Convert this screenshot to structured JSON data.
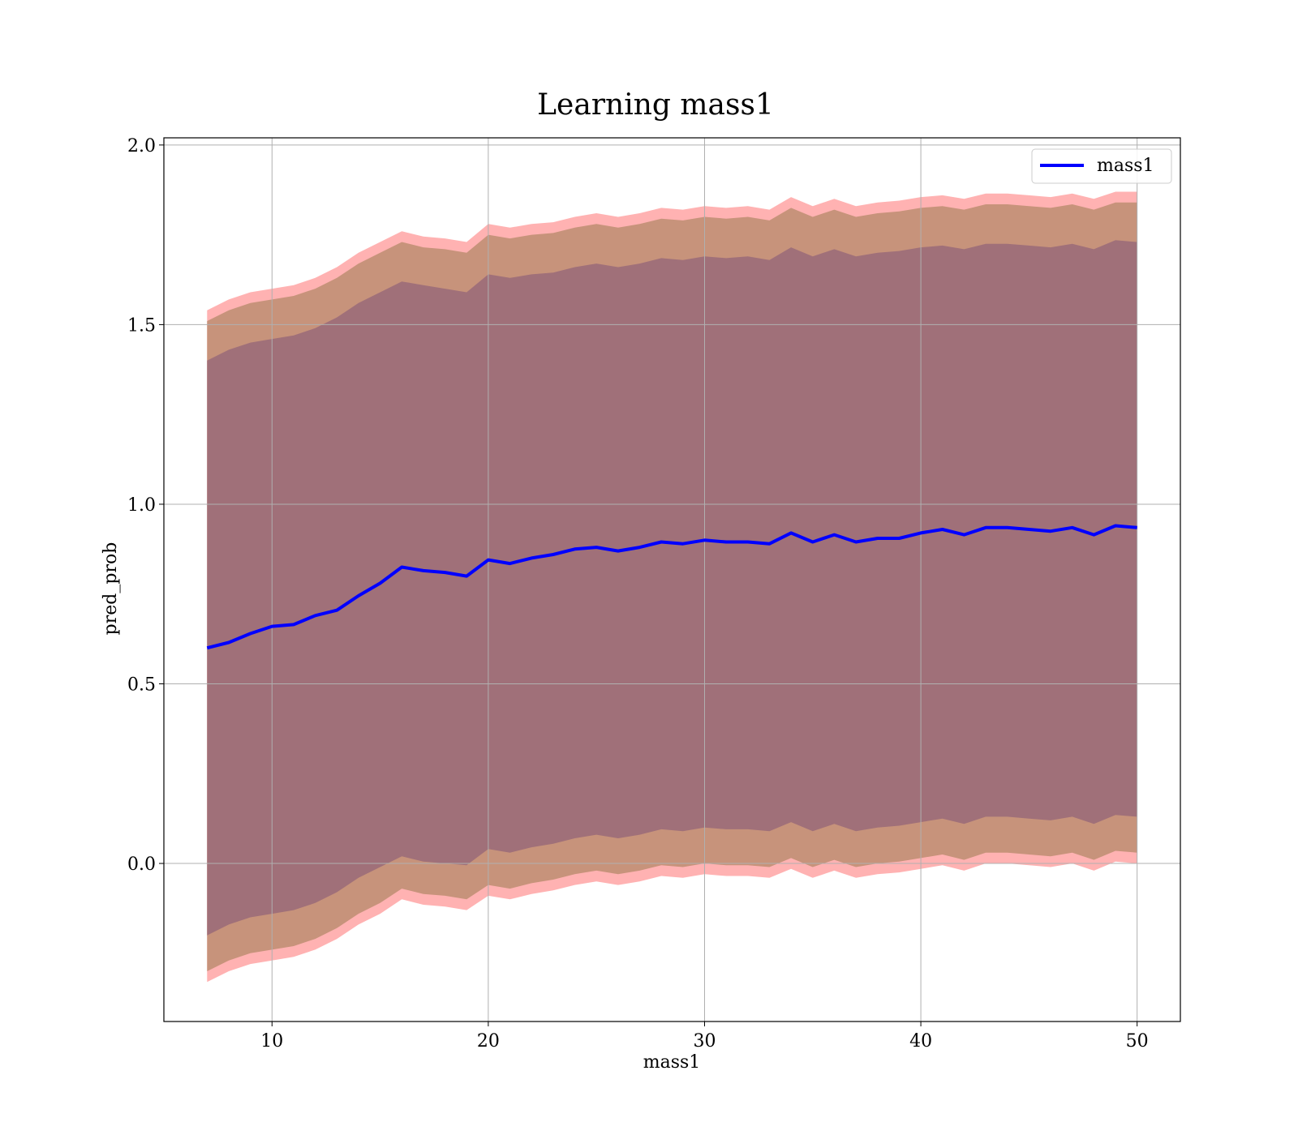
{
  "chart_data": {
    "type": "area",
    "title": "Learning mass1",
    "xlabel": "mass1",
    "ylabel": "pred_prob",
    "xlim": [
      5,
      52
    ],
    "ylim": [
      -0.44,
      2.02
    ],
    "x_ticks": [
      10,
      20,
      30,
      40,
      50
    ],
    "y_ticks": [
      0.0,
      0.5,
      1.0,
      1.5,
      2.0
    ],
    "x_tick_labels": [
      "10",
      "20",
      "30",
      "40",
      "50"
    ],
    "y_tick_labels": [
      "0.0",
      "0.5",
      "1.0",
      "1.5",
      "2.0"
    ],
    "grid": true,
    "legend": {
      "position": "top-right",
      "entries": [
        {
          "name": "mass1",
          "color": "#0000ff"
        }
      ]
    },
    "x": [
      7,
      8,
      9,
      10,
      11,
      12,
      13,
      14,
      15,
      16,
      17,
      18,
      19,
      20,
      21,
      22,
      23,
      24,
      25,
      26,
      27,
      28,
      29,
      30,
      31,
      32,
      33,
      34,
      35,
      36,
      37,
      38,
      39,
      40,
      41,
      42,
      43,
      44,
      45,
      46,
      47,
      48,
      49,
      50
    ],
    "series": [
      {
        "name": "mass1",
        "color": "#0000ff",
        "values": [
          0.6,
          0.615,
          0.64,
          0.66,
          0.665,
          0.69,
          0.705,
          0.745,
          0.78,
          0.825,
          0.815,
          0.81,
          0.8,
          0.845,
          0.835,
          0.85,
          0.86,
          0.875,
          0.88,
          0.87,
          0.88,
          0.895,
          0.89,
          0.9,
          0.895,
          0.895,
          0.89,
          0.92,
          0.895,
          0.915,
          0.895,
          0.905,
          0.905,
          0.92,
          0.93,
          0.915,
          0.935,
          0.935,
          0.93,
          0.925,
          0.935,
          0.915,
          0.94,
          0.935
        ]
      }
    ],
    "bands": [
      {
        "level": "outer",
        "color": "#ff7f7f",
        "upper": [
          1.54,
          1.57,
          1.59,
          1.6,
          1.61,
          1.63,
          1.66,
          1.7,
          1.73,
          1.76,
          1.745,
          1.74,
          1.73,
          1.78,
          1.77,
          1.78,
          1.785,
          1.8,
          1.81,
          1.8,
          1.81,
          1.825,
          1.82,
          1.83,
          1.825,
          1.83,
          1.82,
          1.855,
          1.83,
          1.85,
          1.83,
          1.84,
          1.845,
          1.855,
          1.86,
          1.85,
          1.865,
          1.865,
          1.86,
          1.855,
          1.865,
          1.85,
          1.87,
          1.87
        ],
        "lower": [
          -0.33,
          -0.3,
          -0.28,
          -0.27,
          -0.26,
          -0.24,
          -0.21,
          -0.17,
          -0.14,
          -0.1,
          -0.115,
          -0.12,
          -0.13,
          -0.09,
          -0.1,
          -0.085,
          -0.075,
          -0.06,
          -0.05,
          -0.06,
          -0.05,
          -0.035,
          -0.04,
          -0.03,
          -0.035,
          -0.035,
          -0.04,
          -0.015,
          -0.04,
          -0.02,
          -0.04,
          -0.03,
          -0.025,
          -0.015,
          -0.005,
          -0.02,
          0.0,
          0.0,
          -0.005,
          -0.01,
          0.0,
          -0.02,
          0.005,
          0.0
        ]
      },
      {
        "level": "middle",
        "color": "#c7937b",
        "upper": [
          1.51,
          1.54,
          1.56,
          1.57,
          1.58,
          1.6,
          1.63,
          1.67,
          1.7,
          1.73,
          1.715,
          1.71,
          1.7,
          1.75,
          1.74,
          1.75,
          1.755,
          1.77,
          1.78,
          1.77,
          1.78,
          1.795,
          1.79,
          1.8,
          1.795,
          1.8,
          1.79,
          1.825,
          1.8,
          1.82,
          1.8,
          1.81,
          1.815,
          1.825,
          1.83,
          1.82,
          1.835,
          1.835,
          1.83,
          1.825,
          1.835,
          1.82,
          1.84,
          1.84
        ],
        "lower": [
          -0.3,
          -0.27,
          -0.25,
          -0.24,
          -0.23,
          -0.21,
          -0.18,
          -0.14,
          -0.11,
          -0.07,
          -0.085,
          -0.09,
          -0.1,
          -0.06,
          -0.07,
          -0.055,
          -0.045,
          -0.03,
          -0.02,
          -0.03,
          -0.02,
          -0.005,
          -0.01,
          0.0,
          -0.005,
          -0.005,
          -0.01,
          0.015,
          -0.01,
          0.01,
          -0.01,
          0.0,
          0.005,
          0.015,
          0.025,
          0.01,
          0.03,
          0.03,
          0.025,
          0.02,
          0.03,
          0.01,
          0.035,
          0.03
        ]
      },
      {
        "level": "inner",
        "color": "#a07079",
        "upper": [
          1.4,
          1.43,
          1.45,
          1.46,
          1.47,
          1.49,
          1.52,
          1.56,
          1.59,
          1.62,
          1.61,
          1.6,
          1.59,
          1.64,
          1.63,
          1.64,
          1.645,
          1.66,
          1.67,
          1.66,
          1.67,
          1.685,
          1.68,
          1.69,
          1.685,
          1.69,
          1.68,
          1.715,
          1.69,
          1.71,
          1.69,
          1.7,
          1.705,
          1.715,
          1.72,
          1.71,
          1.725,
          1.725,
          1.72,
          1.715,
          1.725,
          1.71,
          1.735,
          1.73
        ],
        "lower": [
          -0.2,
          -0.17,
          -0.15,
          -0.14,
          -0.13,
          -0.11,
          -0.08,
          -0.04,
          -0.01,
          0.02,
          0.005,
          0.0,
          -0.005,
          0.04,
          0.03,
          0.045,
          0.055,
          0.07,
          0.08,
          0.07,
          0.08,
          0.095,
          0.09,
          0.1,
          0.095,
          0.095,
          0.09,
          0.115,
          0.09,
          0.11,
          0.09,
          0.1,
          0.105,
          0.115,
          0.125,
          0.11,
          0.13,
          0.13,
          0.125,
          0.12,
          0.13,
          0.11,
          0.135,
          0.13
        ]
      }
    ]
  }
}
